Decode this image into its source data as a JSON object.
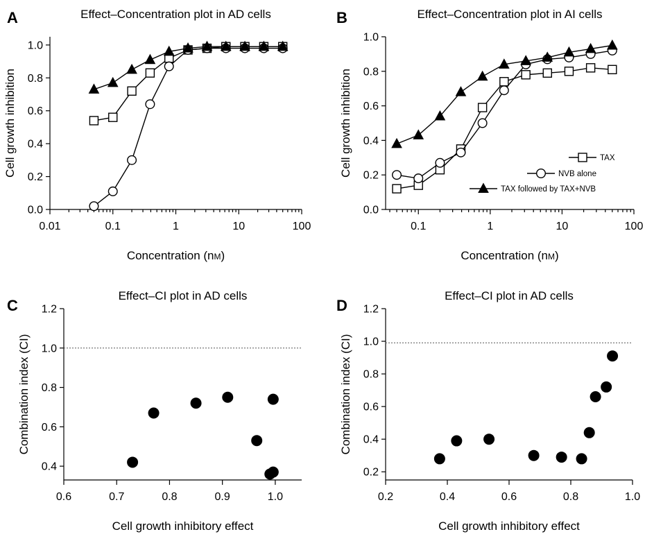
{
  "chart_data": [
    {
      "panel": "A",
      "type": "line",
      "title": "Effect–Concentration plot in AD cells",
      "xlabel": "Concentration (nM)",
      "ylabel": "Cell growth inhibition",
      "x_scale": "log",
      "xlim": [
        0.01,
        100
      ],
      "ylim": [
        0,
        1.05
      ],
      "x_ticks": [
        0.01,
        0.1,
        1,
        10,
        100
      ],
      "x_tick_labels": [
        "0.01",
        "0.1",
        "1",
        "10",
        "100"
      ],
      "y_ticks": [
        0,
        0.2,
        0.4,
        0.6,
        0.8,
        1.0
      ],
      "y_tick_labels": [
        "0.0",
        "0.2",
        "0.4",
        "0.6",
        "0.8",
        "1.0"
      ],
      "grid": false,
      "legend": "none",
      "series": [
        {
          "name": "TAX",
          "marker": "square",
          "x": [
            0.05,
            0.1,
            0.2,
            0.39,
            0.78,
            1.56,
            3.13,
            6.25,
            12.5,
            25,
            50
          ],
          "y": [
            0.54,
            0.56,
            0.72,
            0.83,
            0.92,
            0.97,
            0.98,
            0.99,
            0.99,
            0.99,
            0.99
          ]
        },
        {
          "name": "NVB alone",
          "marker": "circle",
          "x": [
            0.05,
            0.1,
            0.2,
            0.39,
            0.78,
            1.56,
            3.13,
            6.25,
            12.5,
            25,
            50
          ],
          "y": [
            0.02,
            0.11,
            0.3,
            0.64,
            0.87,
            0.97,
            0.98,
            0.98,
            0.98,
            0.98,
            0.98
          ]
        },
        {
          "name": "TAX followed by TAX+NVB",
          "marker": "triangle",
          "x": [
            0.05,
            0.1,
            0.2,
            0.39,
            0.78,
            1.56,
            3.13,
            6.25,
            12.5,
            25,
            50
          ],
          "y": [
            0.73,
            0.77,
            0.85,
            0.91,
            0.96,
            0.98,
            0.99,
            0.99,
            0.99,
            0.99,
            0.99
          ]
        }
      ]
    },
    {
      "panel": "B",
      "type": "line",
      "title": "Effect–Concentration plot in AI cells",
      "xlabel": "Concentration (nM)",
      "ylabel": "Cell growth inhibition",
      "x_scale": "log",
      "xlim": [
        0.035,
        100
      ],
      "ylim": [
        0,
        1.0
      ],
      "x_ticks": [
        0.1,
        1,
        10,
        100
      ],
      "x_tick_labels": [
        "0.1",
        "1",
        "10",
        "100"
      ],
      "y_ticks": [
        0,
        0.2,
        0.4,
        0.6,
        0.8,
        1.0
      ],
      "y_tick_labels": [
        "0.0",
        "0.2",
        "0.4",
        "0.6",
        "0.8",
        "1.0"
      ],
      "grid": false,
      "legend": "bottom-right",
      "series": [
        {
          "name": "TAX",
          "marker": "square",
          "x": [
            0.05,
            0.1,
            0.2,
            0.39,
            0.78,
            1.56,
            3.13,
            6.25,
            12.5,
            25,
            50
          ],
          "y": [
            0.12,
            0.14,
            0.23,
            0.35,
            0.59,
            0.74,
            0.78,
            0.79,
            0.8,
            0.82,
            0.81
          ]
        },
        {
          "name": "NVB alone",
          "marker": "circle",
          "x": [
            0.05,
            0.1,
            0.2,
            0.39,
            0.78,
            1.56,
            3.13,
            6.25,
            12.5,
            25,
            50
          ],
          "y": [
            0.2,
            0.18,
            0.27,
            0.33,
            0.5,
            0.69,
            0.84,
            0.87,
            0.88,
            0.9,
            0.92
          ]
        },
        {
          "name": "TAX followed by TAX+NVB",
          "marker": "triangle",
          "x": [
            0.05,
            0.1,
            0.2,
            0.39,
            0.78,
            1.56,
            3.13,
            6.25,
            12.5,
            25,
            50
          ],
          "y": [
            0.38,
            0.43,
            0.54,
            0.68,
            0.77,
            0.84,
            0.86,
            0.88,
            0.91,
            0.93,
            0.95
          ]
        }
      ]
    },
    {
      "panel": "C",
      "type": "scatter",
      "title": "Effect–CI plot in AD cells",
      "xlabel": "Cell growth inhibitory effect",
      "ylabel": "Combination index (CI)",
      "xlim": [
        0.6,
        1.05
      ],
      "ylim": [
        0.33,
        1.2
      ],
      "x_ticks": [
        0.6,
        0.7,
        0.8,
        0.9,
        1.0
      ],
      "x_tick_labels": [
        "0.6",
        "0.7",
        "0.8",
        "0.9",
        "1.0"
      ],
      "y_ticks": [
        0.4,
        0.6,
        0.8,
        1.0,
        1.2
      ],
      "y_tick_labels": [
        "0.4",
        "0.6",
        "0.8",
        "1.0",
        "1.2"
      ],
      "reference_line_y": 1.0,
      "grid": false,
      "legend": "none",
      "points": [
        {
          "x": 0.73,
          "y": 0.42
        },
        {
          "x": 0.77,
          "y": 0.67
        },
        {
          "x": 0.85,
          "y": 0.72
        },
        {
          "x": 0.91,
          "y": 0.75
        },
        {
          "x": 0.965,
          "y": 0.53
        },
        {
          "x": 0.99,
          "y": 0.36
        },
        {
          "x": 0.996,
          "y": 0.37
        },
        {
          "x": 0.996,
          "y": 0.74
        }
      ]
    },
    {
      "panel": "D",
      "type": "scatter",
      "title": "Effect–CI plot in AD cells",
      "xlabel": "Cell growth inhibitory effect",
      "ylabel": "Combination index (CI)",
      "xlim": [
        0.2,
        1.0
      ],
      "ylim": [
        0.15,
        1.2
      ],
      "x_ticks": [
        0.2,
        0.4,
        0.6,
        0.8,
        1.0
      ],
      "x_tick_labels": [
        "0.2",
        "0.4",
        "0.6",
        "0.8",
        "1.0"
      ],
      "y_ticks": [
        0.2,
        0.4,
        0.6,
        0.8,
        1.0,
        1.2
      ],
      "y_tick_labels": [
        "0.2",
        "0.4",
        "0.6",
        "0.8",
        "1.0",
        "1.2"
      ],
      "reference_line_y": 0.99,
      "grid": false,
      "legend": "none",
      "points": [
        {
          "x": 0.375,
          "y": 0.28
        },
        {
          "x": 0.43,
          "y": 0.39
        },
        {
          "x": 0.535,
          "y": 0.4
        },
        {
          "x": 0.68,
          "y": 0.3
        },
        {
          "x": 0.77,
          "y": 0.29
        },
        {
          "x": 0.835,
          "y": 0.28
        },
        {
          "x": 0.86,
          "y": 0.44
        },
        {
          "x": 0.88,
          "y": 0.66
        },
        {
          "x": 0.915,
          "y": 0.72
        },
        {
          "x": 0.935,
          "y": 0.91
        }
      ]
    }
  ]
}
